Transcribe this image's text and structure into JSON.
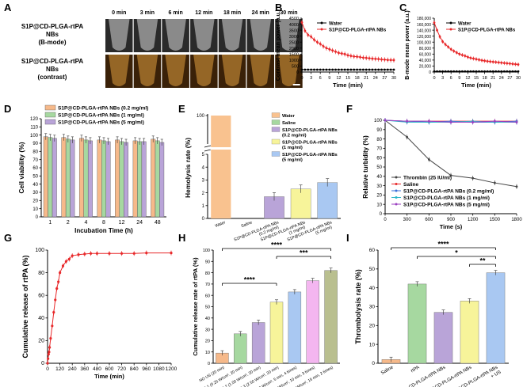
{
  "figure": {
    "panel_letters": [
      "A",
      "B",
      "C",
      "D",
      "E",
      "F",
      "G",
      "H",
      "I"
    ],
    "scale_bar_label": ""
  },
  "chart_data": [
    {
      "panel": "A",
      "type": "image-grid",
      "time_labels": [
        "0 min",
        "3 min",
        "6 min",
        "12 min",
        "18 min",
        "24 min",
        "30 min"
      ],
      "row_labels": [
        [
          "S1P@CD-PLGA-rtPA",
          "NBs",
          "(B-mode)"
        ],
        [
          "S1P@CD-PLGA-rtPA",
          "NBs",
          "(contrast)"
        ]
      ],
      "colors": {
        "bmode": "#2a2a2a",
        "contrast": "#3a2108",
        "speckle_b": "#d8d8d8",
        "speckle_c": "#e0a040"
      }
    },
    {
      "panel": "B",
      "type": "line",
      "xlabel": "Time (min)",
      "ylabel": "Contrast mean power (a.u.)",
      "xlim": [
        0,
        30
      ],
      "ylim": [
        0,
        4500
      ],
      "xticks": [
        0,
        3,
        6,
        9,
        12,
        15,
        18,
        21,
        24,
        27,
        30
      ],
      "yticks": [
        0,
        500,
        1000,
        1500,
        2000,
        2500,
        3000,
        3500,
        4000,
        4500
      ],
      "x": [
        0,
        1,
        2,
        3,
        4,
        5,
        6,
        7,
        8,
        9,
        10,
        11,
        12,
        13,
        14,
        15,
        16,
        17,
        18,
        19,
        20,
        21,
        22,
        23,
        24,
        25,
        26,
        27,
        28,
        29,
        30
      ],
      "series": [
        {
          "name": "Water",
          "color": "#000000",
          "values": [
            200,
            200,
            200,
            200,
            200,
            200,
            200,
            200,
            200,
            200,
            200,
            200,
            200,
            200,
            200,
            200,
            200,
            200,
            200,
            200,
            200,
            200,
            200,
            200,
            200,
            200,
            200,
            200,
            200,
            200,
            200
          ]
        },
        {
          "name": "S1P@CD-PLGA-rtPA NBs",
          "color": "#e8282a",
          "values": [
            4150,
            3450,
            3100,
            2950,
            2700,
            2500,
            2350,
            2150,
            2000,
            1900,
            1800,
            1700,
            1600,
            1550,
            1500,
            1400,
            1350,
            1300,
            1280,
            1250,
            1200,
            1180,
            1150,
            1120,
            1100,
            1080,
            1050,
            1030,
            1010,
            1000,
            990
          ]
        }
      ],
      "legend_position": "top-right"
    },
    {
      "panel": "C",
      "type": "line",
      "xlabel": "Time (min)",
      "ylabel": "B-mode mean power (a.u.)",
      "xlim": [
        0,
        30
      ],
      "ylim": [
        0,
        180000
      ],
      "xticks": [
        0,
        3,
        6,
        9,
        12,
        15,
        18,
        21,
        24,
        27,
        30
      ],
      "yticks": [
        0,
        20000,
        40000,
        60000,
        80000,
        100000,
        120000,
        140000,
        160000,
        180000
      ],
      "ytick_labels": [
        "0",
        "20,000",
        "40,000",
        "60,000",
        "80,000",
        "100,000",
        "120,000",
        "140,000",
        "160,000",
        "180,000"
      ],
      "x": [
        0,
        1,
        2,
        3,
        4,
        5,
        6,
        7,
        8,
        9,
        10,
        11,
        12,
        13,
        14,
        15,
        16,
        17,
        18,
        19,
        20,
        21,
        22,
        23,
        24,
        25,
        26,
        27,
        28,
        29,
        30
      ],
      "series": [
        {
          "name": "Water",
          "color": "#000000",
          "values": [
            2000,
            2000,
            2000,
            2000,
            2000,
            2000,
            2000,
            2000,
            2000,
            2000,
            2000,
            2000,
            2000,
            2000,
            2000,
            2000,
            2000,
            2000,
            2000,
            2000,
            2000,
            2000,
            2000,
            2000,
            2000,
            2000,
            2000,
            2000,
            2000,
            2000,
            2000
          ]
        },
        {
          "name": "S1P@CD-PLGA-rtPA NBs",
          "color": "#e8282a",
          "values": [
            165000,
            140000,
            118000,
            102000,
            92000,
            84000,
            76000,
            70000,
            65000,
            60000,
            57000,
            54000,
            50000,
            47000,
            45000,
            43000,
            41000,
            39000,
            37500,
            36000,
            35000,
            34000,
            33000,
            32000,
            31000,
            30000,
            29000,
            28000,
            27000,
            26000,
            25000
          ]
        }
      ],
      "legend_position": "top-right"
    },
    {
      "panel": "D",
      "type": "bar",
      "xlabel": "Incubation Time (h)",
      "ylabel": "Cell viability (%)",
      "ylim": [
        0,
        120
      ],
      "yticks": [
        0,
        10,
        20,
        30,
        40,
        50,
        60,
        70,
        80,
        90,
        100,
        110,
        120
      ],
      "categories": [
        "1",
        "2",
        "4",
        "8",
        "12",
        "24",
        "48"
      ],
      "series": [
        {
          "name": "S1P@CD-PLGA-rtPA NBs (0.2 mg/ml)",
          "color": "#f6b98a",
          "values": [
            98,
            97,
            96,
            94,
            94,
            93,
            95
          ]
        },
        {
          "name": "S1P@CD-PLGA-rtPA NBs (1 mg/ml)",
          "color": "#a6d8a0",
          "values": [
            97,
            95,
            94,
            93,
            92,
            92,
            93
          ]
        },
        {
          "name": "S1P@CD-PLGA-rtPA NBs (5 mg/ml)",
          "color": "#b9a4d8",
          "values": [
            96,
            94,
            93,
            92,
            91,
            92,
            91
          ]
        }
      ],
      "legend_position": "top"
    },
    {
      "panel": "E",
      "type": "bar",
      "ylabel": "Hemolysis rate (%)",
      "yticks_lower": [
        0,
        1,
        2,
        3,
        4,
        5
      ],
      "yticks_upper": [
        100
      ],
      "axis_break": true,
      "categories": [
        "Water",
        "Saline",
        "S1P@CD-PLGA-rtPA NBs (0.2 mg/ml)",
        "S1P@CD-PLGA-rtPA NBs (1 mg/ml)",
        "S1P@CD-PLGA-rtPA NBs (5 mg/ml)"
      ],
      "tick_labels": [
        [
          "Water"
        ],
        [
          "Saline"
        ],
        [
          "S1P@CD-PLGA-rtPA NBs",
          "(0.2 mg/ml)"
        ],
        [
          "S1P@CD-PLGA-rtPA NBs",
          "(1 mg/ml)"
        ],
        [
          "S1P@CD-PLGA-rtPA NBs",
          "(5 mg/ml)"
        ]
      ],
      "legend_labels": [
        [
          "Water"
        ],
        [
          "Saline"
        ],
        [
          "S1P@CD-PLGA-rtPA NBs",
          "(0.2 mg/ml)"
        ],
        [
          "S1P@CD-PLGA-rtPA NBs",
          "(1 mg/ml)"
        ],
        [
          "S1P@CD-PLGA-rtPA NBs",
          "(5 mg/ml)"
        ]
      ],
      "colors": [
        "#f9c28f",
        "#a6d8a0",
        "#b9a4d8",
        "#f7f49a",
        "#a9c8f2"
      ],
      "values": [
        100,
        0,
        1.7,
        2.3,
        2.8
      ],
      "legend_position": "top-right"
    },
    {
      "panel": "F",
      "type": "line",
      "xlabel": "Time (s)",
      "ylabel": "Relative turbidity (%)",
      "xlim": [
        0,
        1800
      ],
      "ylim": [
        0,
        100
      ],
      "xticks": [
        0,
        300,
        600,
        900,
        1200,
        1500,
        1800
      ],
      "yticks": [
        0,
        10,
        20,
        30,
        40,
        50,
        60,
        70,
        80,
        90,
        100
      ],
      "x": [
        0,
        300,
        600,
        900,
        1200,
        1500,
        1800
      ],
      "series": [
        {
          "name": "Thrombin (25 IU/ml)",
          "color": "#444444",
          "values": [
            100,
            82,
            58,
            41,
            38,
            33,
            29
          ]
        },
        {
          "name": "Saline",
          "color": "#e8282a",
          "values": [
            100,
            99,
            99,
            99,
            99,
            99,
            99
          ]
        },
        {
          "name": "S1P@CD-PLGA-rtPA NBs (0.2 mg/ml)",
          "color": "#3a6fd8",
          "values": [
            100,
            99,
            98,
            99,
            98,
            98,
            99
          ]
        },
        {
          "name": "S1P@CD-PLGA-rtPA NBs (1 mg/ml)",
          "color": "#2bb6c8",
          "values": [
            100,
            98,
            98,
            98,
            99,
            98,
            98
          ]
        },
        {
          "name": "S1P@CD-PLGA-rtPA NBs (5 mg/ml)",
          "color": "#9b3fc0",
          "values": [
            100,
            99,
            99,
            98,
            98,
            99,
            98
          ]
        }
      ],
      "legend_position": "bottom-left"
    },
    {
      "panel": "G",
      "type": "line",
      "xlabel": "Time (min)",
      "ylabel": "Cumulative release of rtPA (%)",
      "xlim": [
        0,
        1200
      ],
      "ylim": [
        0,
        100
      ],
      "xticks": [
        0,
        120,
        240,
        360,
        480,
        600,
        720,
        840,
        960,
        1080,
        1200
      ],
      "yticks": [
        0,
        20,
        40,
        60,
        80,
        100
      ],
      "yticks_label": [
        "0",
        "20",
        "40",
        "60",
        "80",
        "100"
      ],
      "x": [
        0,
        5,
        10,
        15,
        20,
        30,
        45,
        60,
        75,
        90,
        105,
        120,
        150,
        180,
        210,
        240,
        300,
        360,
        420,
        480,
        600,
        720,
        840,
        960,
        1200
      ],
      "series": [
        {
          "name": "rtPA release",
          "color": "#e8282a",
          "values": [
            0,
            4,
            8,
            10,
            14,
            22,
            33,
            45,
            56,
            66,
            72,
            80,
            86,
            90,
            92,
            95,
            96,
            96.5,
            97,
            97,
            97,
            97,
            97,
            97.5,
            97.5
          ]
        }
      ]
    },
    {
      "panel": "H",
      "type": "bar",
      "ylabel": "Cumulative release rate of rtPA (%)",
      "ylim": [
        0,
        100
      ],
      "yticks": [
        0,
        10,
        20,
        30,
        40,
        50,
        60,
        70,
        80,
        90,
        100
      ],
      "categories": [
        "NO US (20 min)",
        "US 1 (0.25 W/cm², 20 min)",
        "US 2 (1.00 W/cm², 20 min)",
        "US 3 (2.50 W/cm², 20 min)",
        "US 4 (2.50 W/cm², 5 min, 4 times)",
        "US 5 (2.50 W/cm², 10 min, 3 times)",
        "US 6 (2.50 W/cm², 15 min, 2 times)"
      ],
      "colors": [
        "#f6b98a",
        "#a6d8a0",
        "#b9a4d8",
        "#f7f49a",
        "#a9c8f2",
        "#f4b6f0",
        "#b9bf8f"
      ],
      "values": [
        9,
        26,
        36,
        54,
        63,
        73,
        82
      ],
      "significance": [
        {
          "label": "****",
          "from": 0,
          "to": 3
        },
        {
          "label": "***",
          "from": 3,
          "to": 6
        },
        {
          "label": "****",
          "from": 0,
          "to": 6
        }
      ]
    },
    {
      "panel": "I",
      "type": "bar",
      "ylabel": "Thrombolysis rate (%)",
      "ylim": [
        0,
        60
      ],
      "yticks": [
        0,
        10,
        20,
        30,
        40,
        50,
        60
      ],
      "categories": [
        "Saline",
        "rtPA",
        "CD-PLGA-rtPA NBs",
        "S1P@CD-PLGA-rtPA NBs",
        "S1P@CD-PLGA-rtPA NBs + US"
      ],
      "tick_labels": [
        [
          "Saline"
        ],
        [
          "rtPA"
        ],
        [
          "CD-PLGA-rtPA NBs"
        ],
        [
          "S1P@CD-PLGA-rtPA NBs"
        ],
        [
          "S1P@CD-PLGA-rtPA NBs",
          "+ US"
        ]
      ],
      "colors": [
        "#f6b98a",
        "#a6d8a0",
        "#b9a4d8",
        "#f7f49a",
        "#a9c8f2"
      ],
      "values": [
        2,
        42,
        27,
        33,
        48
      ],
      "significance": [
        {
          "label": "**",
          "from": 3,
          "to": 4
        },
        {
          "label": "*",
          "from": 1,
          "to": 4
        },
        {
          "label": "****",
          "from": 0,
          "to": 4
        }
      ]
    }
  ]
}
